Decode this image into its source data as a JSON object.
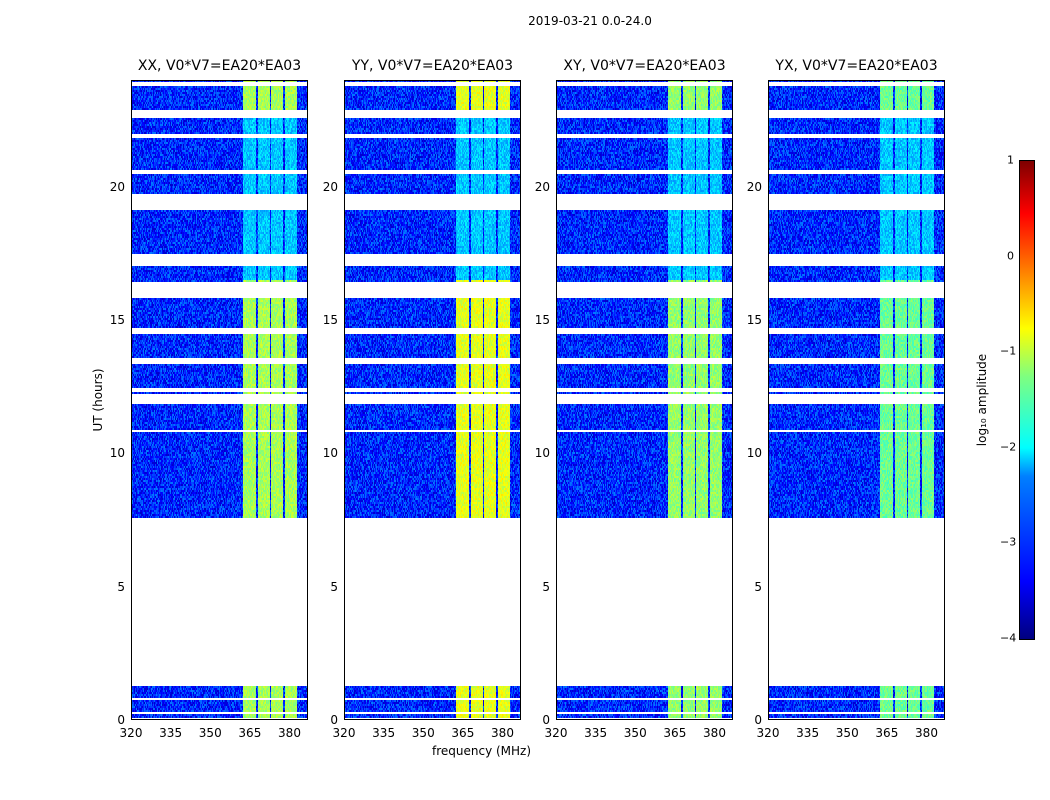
{
  "chart_data": {
    "type": "heatmap",
    "title": "2019-03-21 0.0-24.0",
    "xlabel": "frequency (MHz)",
    "ylabel": "UT (hours)",
    "xlim": [
      320,
      387
    ],
    "ylim": [
      0,
      24
    ],
    "xticks": [
      "320",
      "335",
      "350",
      "365",
      "380"
    ],
    "yticks": [
      "0",
      "5",
      "10",
      "15",
      "20"
    ],
    "panels": [
      {
        "title": "XX, V0*V7=EA20*EA03",
        "band_level": -1.3
      },
      {
        "title": "YY, V0*V7=EA20*EA03",
        "band_level": -1.0
      },
      {
        "title": "XY, V0*V7=EA20*EA03",
        "band_level": -1.4
      },
      {
        "title": "YX, V0*V7=EA20*EA03",
        "band_level": -1.6
      }
    ],
    "background_level": -3.2,
    "data_time_ranges_hours": [
      [
        0.05,
        1.25
      ],
      [
        7.6,
        24
      ]
    ],
    "flagged_time_ranges_hours": [
      [
        0.25,
        0.32
      ],
      [
        0.5,
        0.56
      ],
      [
        0.75,
        0.8
      ],
      [
        23.75,
        23.95
      ],
      [
        22.6,
        22.85
      ],
      [
        21.8,
        21.95
      ],
      [
        20.5,
        20.65
      ],
      [
        19.15,
        19.7
      ],
      [
        17.05,
        17.5
      ],
      [
        15.85,
        16.4
      ],
      [
        14.5,
        14.7
      ],
      [
        13.35,
        13.6
      ],
      [
        12.3,
        12.45
      ],
      [
        11.85,
        12.2
      ],
      [
        10.8,
        10.85
      ]
    ],
    "rfi_bands_MHz": [
      [
        362.5,
        367.4
      ],
      [
        368.1,
        372.7
      ],
      [
        373.1,
        377.6
      ],
      [
        378.4,
        383
      ]
    ],
    "rfi_active_hours": [
      [
        0.05,
        1.25
      ],
      [
        7.6,
        16.5
      ],
      [
        22.8,
        24
      ]
    ],
    "colorbar": {
      "label": "log₁₀ amplitude",
      "ticks": [
        "1",
        "0",
        "−1",
        "−2",
        "−3",
        "−4"
      ],
      "range": [
        -4,
        1
      ]
    }
  }
}
